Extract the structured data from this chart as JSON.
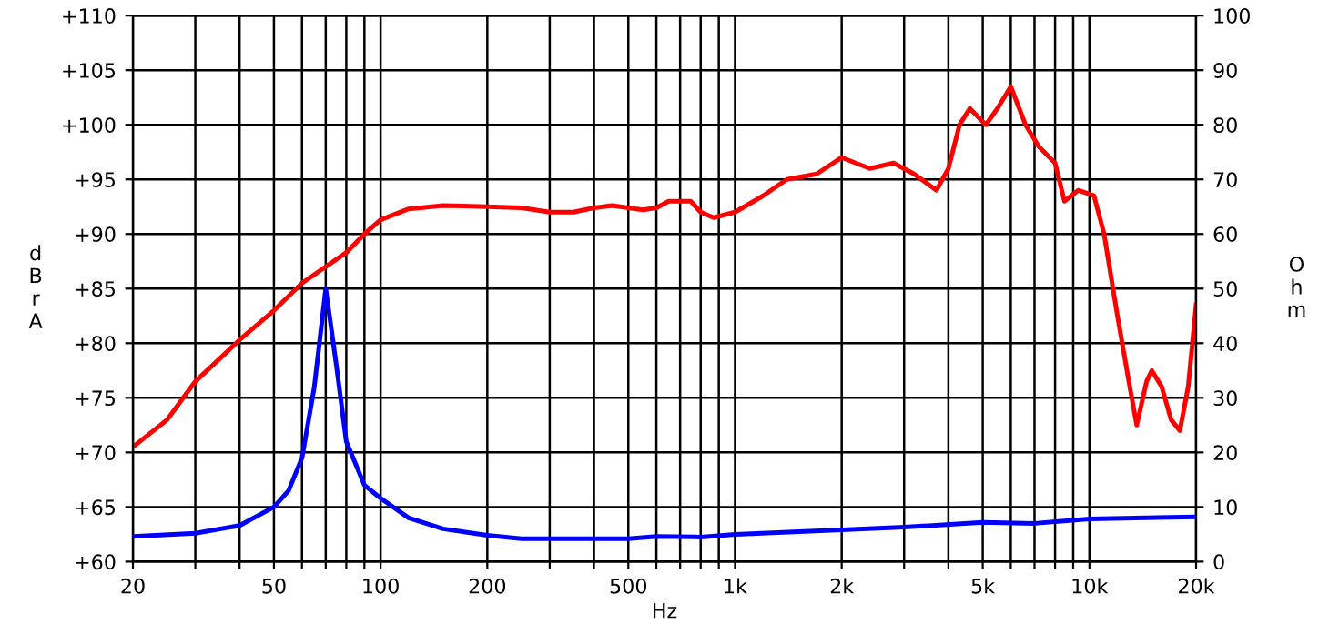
{
  "chart_data": {
    "type": "line",
    "xlabel": "Hz",
    "ylabel": "dBrA",
    "y2label": "Ohm",
    "log": "x",
    "grid": true,
    "line_style": "solid",
    "marker": "none",
    "xlim": [
      20,
      20000
    ],
    "xticks": [
      20,
      {
        "value": 30,
        "label": null
      },
      {
        "value": 40,
        "label": null
      },
      50,
      {
        "value": 60,
        "label": null
      },
      {
        "value": 70,
        "label": null
      },
      {
        "value": 80,
        "label": null
      },
      {
        "value": 90,
        "label": null
      },
      100,
      200,
      {
        "value": 300,
        "label": null
      },
      {
        "value": 400,
        "label": null
      },
      500,
      {
        "value": 600,
        "label": null
      },
      {
        "value": 700,
        "label": null
      },
      {
        "value": 800,
        "label": null
      },
      {
        "value": 900,
        "label": null
      },
      {
        "value": 1000,
        "label": "1k"
      },
      {
        "value": 2000,
        "label": "2k"
      },
      {
        "value": 3000,
        "label": null
      },
      {
        "value": 4000,
        "label": null
      },
      {
        "value": 5000,
        "label": "5k"
      },
      {
        "value": 6000,
        "label": null
      },
      {
        "value": 7000,
        "label": null
      },
      {
        "value": 8000,
        "label": null
      },
      {
        "value": 9000,
        "label": null
      },
      {
        "value": 10000,
        "label": "10k"
      },
      {
        "value": 20000,
        "label": "20k"
      }
    ],
    "ylim": [
      60,
      110
    ],
    "yticks": [
      {
        "value": 60,
        "label": "+60"
      },
      {
        "value": 65,
        "label": "+65"
      },
      {
        "value": 70,
        "label": "+70"
      },
      {
        "value": 75,
        "label": "+75"
      },
      {
        "value": 80,
        "label": "+80"
      },
      {
        "value": 85,
        "label": "+85"
      },
      {
        "value": 90,
        "label": "+90"
      },
      {
        "value": 95,
        "label": "+95"
      },
      {
        "value": 100,
        "label": "+100"
      },
      {
        "value": 105,
        "label": "+105"
      },
      {
        "value": 110,
        "label": "+110"
      }
    ],
    "y2lim": [
      0,
      100
    ],
    "y2ticks": [
      0,
      10,
      20,
      30,
      40,
      50,
      60,
      70,
      80,
      90,
      100
    ],
    "series": [
      {
        "color": "#ff0000",
        "x": [
          20,
          25,
          30,
          40,
          50,
          60,
          70,
          80,
          90,
          100,
          120,
          150,
          200,
          250,
          300,
          350,
          400,
          450,
          550,
          600,
          650,
          700,
          750,
          800,
          870,
          1000,
          1200,
          1400,
          1700,
          2000,
          2400,
          2800,
          3200,
          3700,
          4000,
          4300,
          4600,
          5100,
          5500,
          6000,
          6600,
          7200,
          8000,
          8500,
          9300,
          10300,
          11000,
          12000,
          13000,
          13600,
          14500,
          15000,
          16000,
          17000,
          18000,
          19000,
          20000
        ],
        "values": [
          70.5,
          73,
          76.5,
          80.3,
          83,
          85.5,
          87,
          88.3,
          90,
          91.3,
          92.3,
          92.6,
          92.5,
          92.4,
          92,
          92,
          92.4,
          92.6,
          92.2,
          92.4,
          93,
          93,
          93,
          92,
          91.5,
          92,
          93.5,
          95,
          95.5,
          97,
          96,
          96.5,
          95.5,
          94,
          96,
          100,
          101.5,
          100,
          101.5,
          103.5,
          100,
          98,
          96.5,
          93,
          94,
          93.5,
          90,
          82.5,
          76,
          72.5,
          76.5,
          77.5,
          76,
          73,
          72,
          76,
          83.5
        ]
      },
      {
        "color": "#0000ff",
        "axis": "y2",
        "x": [
          20,
          30,
          40,
          50,
          55,
          60,
          65,
          70,
          75,
          80,
          90,
          100,
          120,
          150,
          200,
          250,
          500,
          600,
          800,
          1000,
          2000,
          3000,
          5000,
          7000,
          10000,
          20000
        ],
        "values": [
          4.6,
          5.2,
          6.6,
          10,
          13,
          19,
          32,
          50,
          36,
          22,
          14,
          11.6,
          8,
          6,
          4.8,
          4.2,
          4.2,
          4.6,
          4.5,
          5,
          5.8,
          6.3,
          7.2,
          7,
          7.8,
          8.2
        ]
      }
    ]
  }
}
